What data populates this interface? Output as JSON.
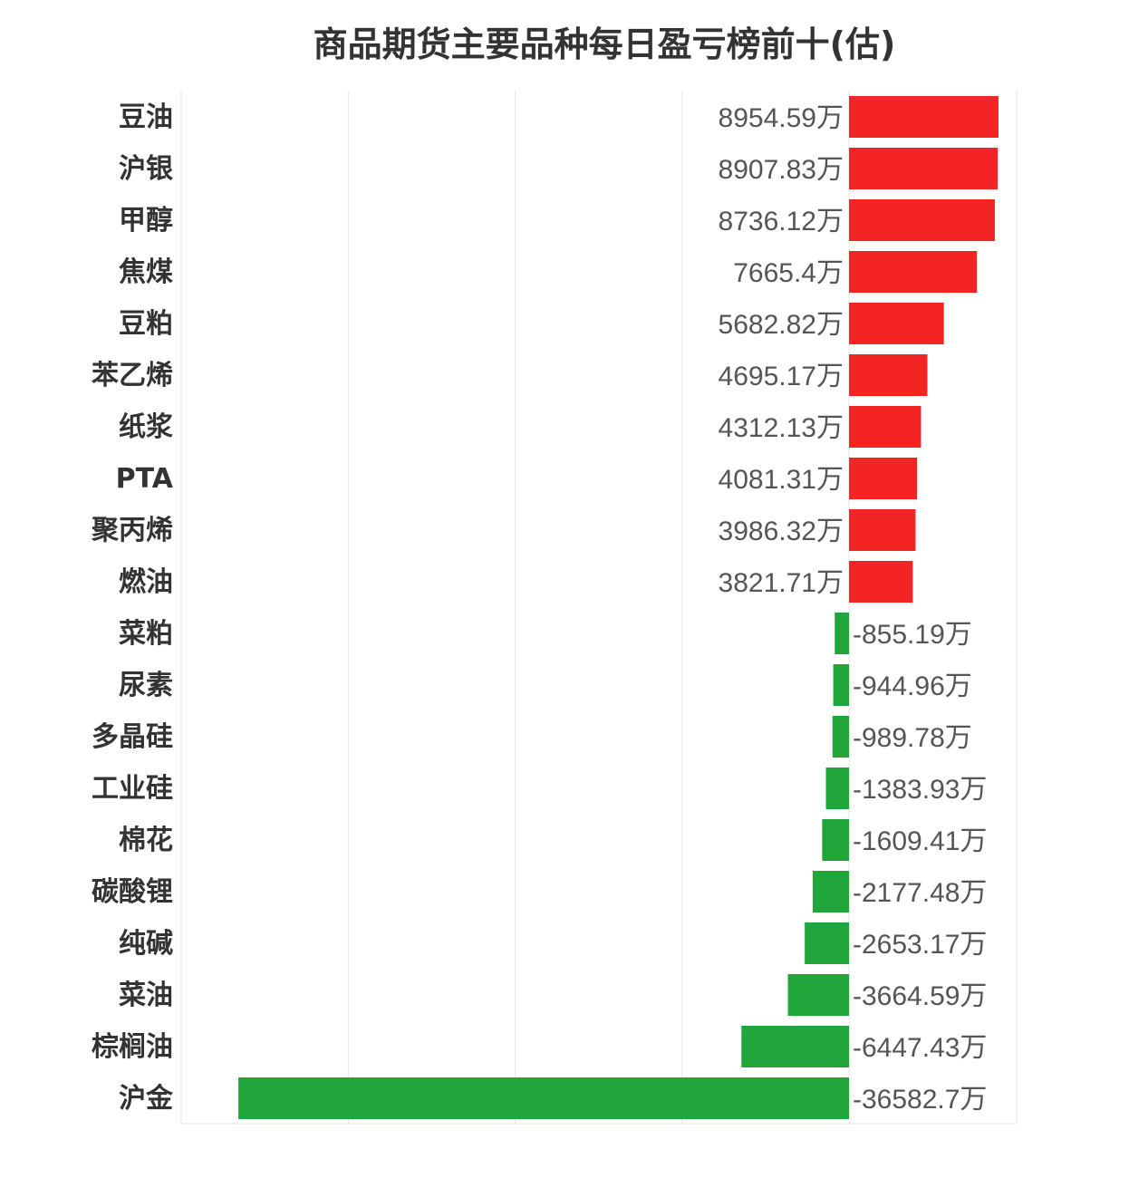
{
  "chart_data": {
    "type": "bar",
    "orientation": "horizontal",
    "title": "商品期货主要品种每日盈亏榜前十(估)",
    "xlabel": "",
    "ylabel": "",
    "unit_suffix": "万",
    "xlim": [
      -40000,
      10000
    ],
    "grid": true,
    "colors": {
      "positive": "#f52424",
      "negative": "#21a63c"
    },
    "categories": [
      "豆油",
      "沪银",
      "甲醇",
      "焦煤",
      "豆粕",
      "苯乙烯",
      "纸浆",
      "PTA",
      "聚丙烯",
      "燃油",
      "菜粕",
      "尿素",
      "多晶硅",
      "工业硅",
      "棉花",
      "碳酸锂",
      "纯碱",
      "菜油",
      "棕榈油",
      "沪金"
    ],
    "values": [
      8954.59,
      8907.83,
      8736.12,
      7665.4,
      5682.82,
      4695.17,
      4312.13,
      4081.31,
      3986.32,
      3821.71,
      -855.19,
      -944.96,
      -989.78,
      -1383.93,
      -1609.41,
      -2177.48,
      -2653.17,
      -3664.59,
      -6447.43,
      -36582.7
    ]
  }
}
